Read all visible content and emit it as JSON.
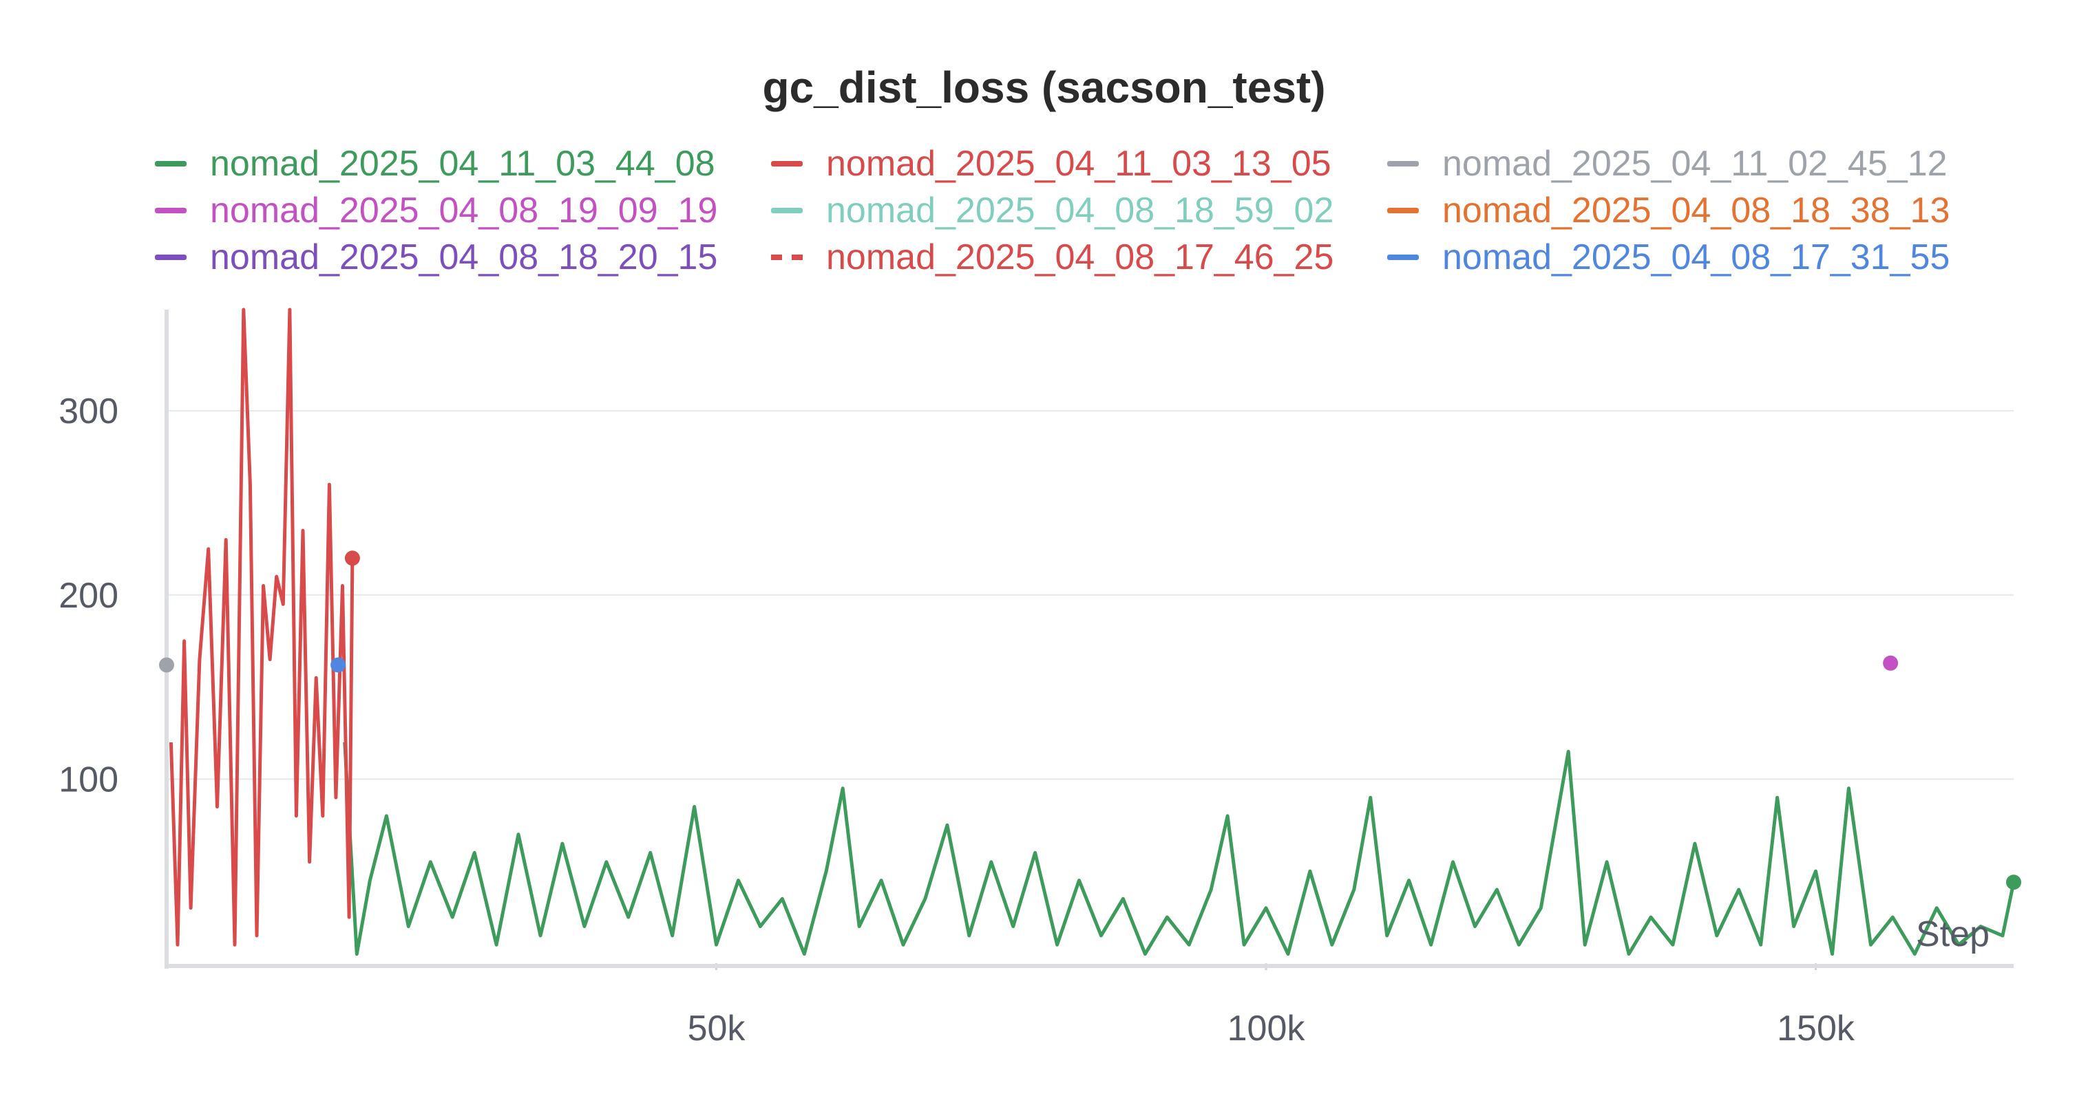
{
  "chart_data": {
    "type": "line",
    "title": "gc_dist_loss (sacson_test)",
    "xlabel": "Step",
    "ylabel": "",
    "xlim": [
      0,
      168000
    ],
    "ylim": [
      0,
      355
    ],
    "x_ticks": [
      {
        "value": 50000,
        "label": "50k"
      },
      {
        "value": 100000,
        "label": "100k"
      },
      {
        "value": 150000,
        "label": "150k"
      }
    ],
    "y_ticks": [
      {
        "value": 100,
        "label": "100"
      },
      {
        "value": 200,
        "label": "200"
      },
      {
        "value": 300,
        "label": "300"
      }
    ],
    "grid": true,
    "legend_position": "top",
    "series": [
      {
        "name": "nomad_2025_04_11_03_44_08",
        "color": "#3d9b5c",
        "style": "solid",
        "x": [
          16200,
          17300,
          18500,
          20000,
          22000,
          24000,
          26000,
          28000,
          30000,
          32000,
          34000,
          36000,
          38000,
          40000,
          42000,
          44000,
          46000,
          48000,
          50000,
          52000,
          54000,
          56000,
          58000,
          60000,
          61500,
          63000,
          65000,
          67000,
          69000,
          71000,
          73000,
          75000,
          77000,
          79000,
          81000,
          83000,
          85000,
          87000,
          89000,
          91000,
          93000,
          95000,
          96500,
          98000,
          100000,
          102000,
          104000,
          106000,
          108000,
          109500,
          111000,
          113000,
          115000,
          117000,
          119000,
          121000,
          123000,
          125000,
          127500,
          129000,
          131000,
          133000,
          135000,
          137000,
          139000,
          141000,
          143000,
          145000,
          146500,
          148000,
          150000,
          151500,
          153000,
          155000,
          157000,
          159000,
          161000,
          163000,
          165000,
          167000,
          168000
        ],
        "y": [
          120,
          5,
          45,
          80,
          20,
          55,
          25,
          60,
          10,
          70,
          15,
          65,
          20,
          55,
          25,
          60,
          15,
          85,
          10,
          45,
          20,
          35,
          5,
          50,
          95,
          20,
          45,
          10,
          35,
          75,
          15,
          55,
          20,
          60,
          10,
          45,
          15,
          35,
          5,
          25,
          10,
          40,
          80,
          10,
          30,
          5,
          50,
          10,
          40,
          90,
          15,
          45,
          10,
          55,
          20,
          40,
          10,
          30,
          115,
          10,
          55,
          5,
          25,
          10,
          65,
          15,
          40,
          10,
          90,
          20,
          50,
          5,
          95,
          10,
          25,
          5,
          30,
          10,
          20,
          15,
          44
        ]
      },
      {
        "name": "nomad_2025_04_11_03_13_05",
        "color": "#d94a4a",
        "style": "solid",
        "x": [
          400,
          1000,
          1600,
          2200,
          3000,
          3800,
          4600,
          5400,
          6200,
          7000,
          7600,
          8200,
          8800,
          9400,
          10000,
          10600,
          11200,
          11800,
          12400,
          13000,
          13600,
          14200,
          14800,
          15400,
          16000,
          16600,
          16900
        ],
        "y": [
          120,
          10,
          175,
          30,
          165,
          225,
          85,
          230,
          10,
          355,
          260,
          15,
          205,
          165,
          210,
          195,
          355,
          80,
          235,
          55,
          155,
          80,
          260,
          90,
          205,
          25,
          220
        ]
      },
      {
        "name": "nomad_2025_04_11_02_45_12",
        "color": "#9ea3ab",
        "style": "solid",
        "x": [
          0
        ],
        "y": [
          162
        ]
      },
      {
        "name": "nomad_2025_04_08_19_09_19",
        "color": "#c451c4",
        "style": "solid",
        "x": [
          156800
        ],
        "y": [
          163
        ]
      },
      {
        "name": "nomad_2025_04_08_18_59_02",
        "color": "#80cfbe",
        "style": "solid",
        "x": [],
        "y": []
      },
      {
        "name": "nomad_2025_04_08_18_38_13",
        "color": "#e57230",
        "style": "solid",
        "x": [],
        "y": []
      },
      {
        "name": "nomad_2025_04_08_18_20_15",
        "color": "#7d4fbe",
        "style": "solid",
        "x": [],
        "y": []
      },
      {
        "name": "nomad_2025_04_08_17_46_25",
        "color": "#d94a4a",
        "style": "dashed",
        "x": [],
        "y": []
      },
      {
        "name": "nomad_2025_04_08_17_31_55",
        "color": "#4f86e0",
        "style": "solid",
        "x": [
          15600
        ],
        "y": [
          162
        ]
      }
    ]
  }
}
